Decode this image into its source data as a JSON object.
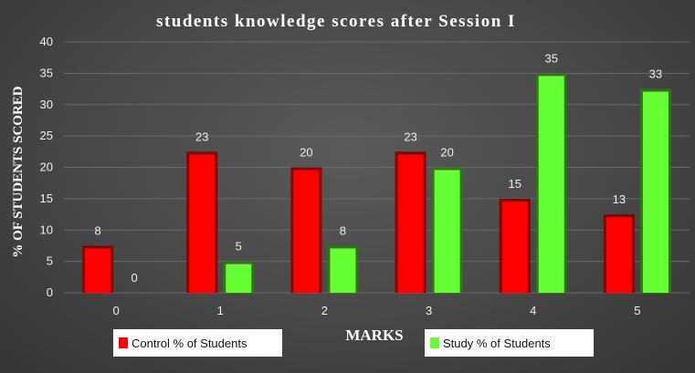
{
  "colors": {
    "control": "#ff0000",
    "control_dark": "#8b0000",
    "study": "#66ff33",
    "study_dark": "#2a7a10",
    "grid": "#6b6b6b"
  },
  "chart_data": {
    "type": "bar",
    "title": "students knowledge  scores after Session I",
    "xlabel": "MARKS",
    "ylabel": "% OF STUDENTS SCORED",
    "categories": [
      "0",
      "1",
      "2",
      "3",
      "4",
      "5"
    ],
    "ylim": [
      0,
      40
    ],
    "yticks": [
      0,
      5,
      10,
      15,
      20,
      25,
      30,
      35,
      40
    ],
    "grid": true,
    "legend_position": "bottom",
    "series": [
      {
        "name": "Control % of Students",
        "values": [
          7.5,
          22.5,
          20,
          22.5,
          15,
          12.5
        ],
        "labels": [
          "8",
          "23",
          "20",
          "23",
          "15",
          "13"
        ]
      },
      {
        "name": "Study % of Students",
        "values": [
          0,
          5,
          7.5,
          20,
          35,
          32.5
        ],
        "labels": [
          "0",
          "5",
          "8",
          "20",
          "35",
          "33"
        ]
      }
    ]
  }
}
